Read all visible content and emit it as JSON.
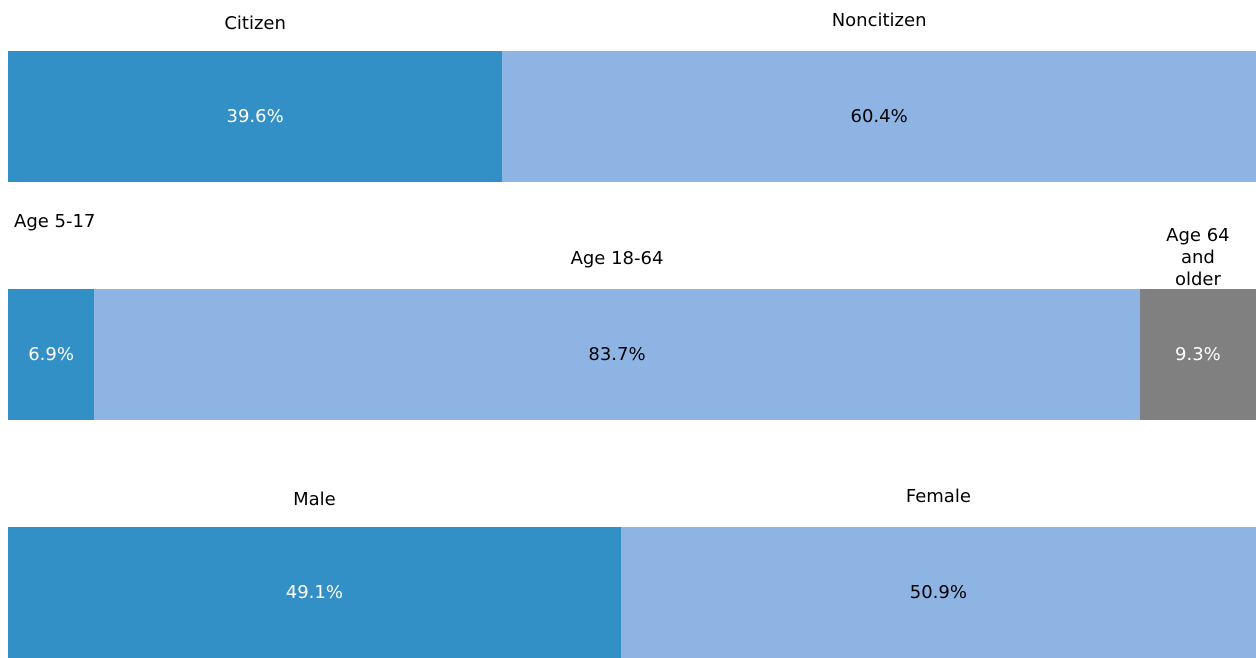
{
  "chart_data": [
    {
      "type": "stacked_bar",
      "series": [
        {
          "name": "Citizen",
          "color": "#3390c6",
          "values": [
            39.6
          ],
          "value_labels": [
            "39.6%"
          ]
        },
        {
          "name": "Noncitizen",
          "color": "#8eb4e3",
          "values": [
            60.4
          ],
          "value_labels": [
            "60.4%"
          ]
        }
      ]
    },
    {
      "type": "stacked_bar",
      "series": [
        {
          "name": "Age 5-17",
          "color": "#3390c6",
          "values": [
            6.9
          ],
          "value_labels": [
            "6.9%"
          ]
        },
        {
          "name": "Age 18-64",
          "color": "#8eb4e3",
          "values": [
            83.7
          ],
          "value_labels": [
            "83.7%"
          ]
        },
        {
          "name": "Age 64 and older",
          "color": "#808080",
          "values": [
            9.3
          ],
          "value_labels": [
            "9.3%"
          ]
        }
      ]
    },
    {
      "type": "stacked_bar",
      "series": [
        {
          "name": "Male",
          "color": "#3390c6",
          "values": [
            49.1
          ],
          "value_labels": [
            "49.1%"
          ]
        },
        {
          "name": "Female",
          "color": "#8eb4e3",
          "values": [
            50.9
          ],
          "value_labels": [
            "50.9%"
          ]
        }
      ]
    }
  ]
}
